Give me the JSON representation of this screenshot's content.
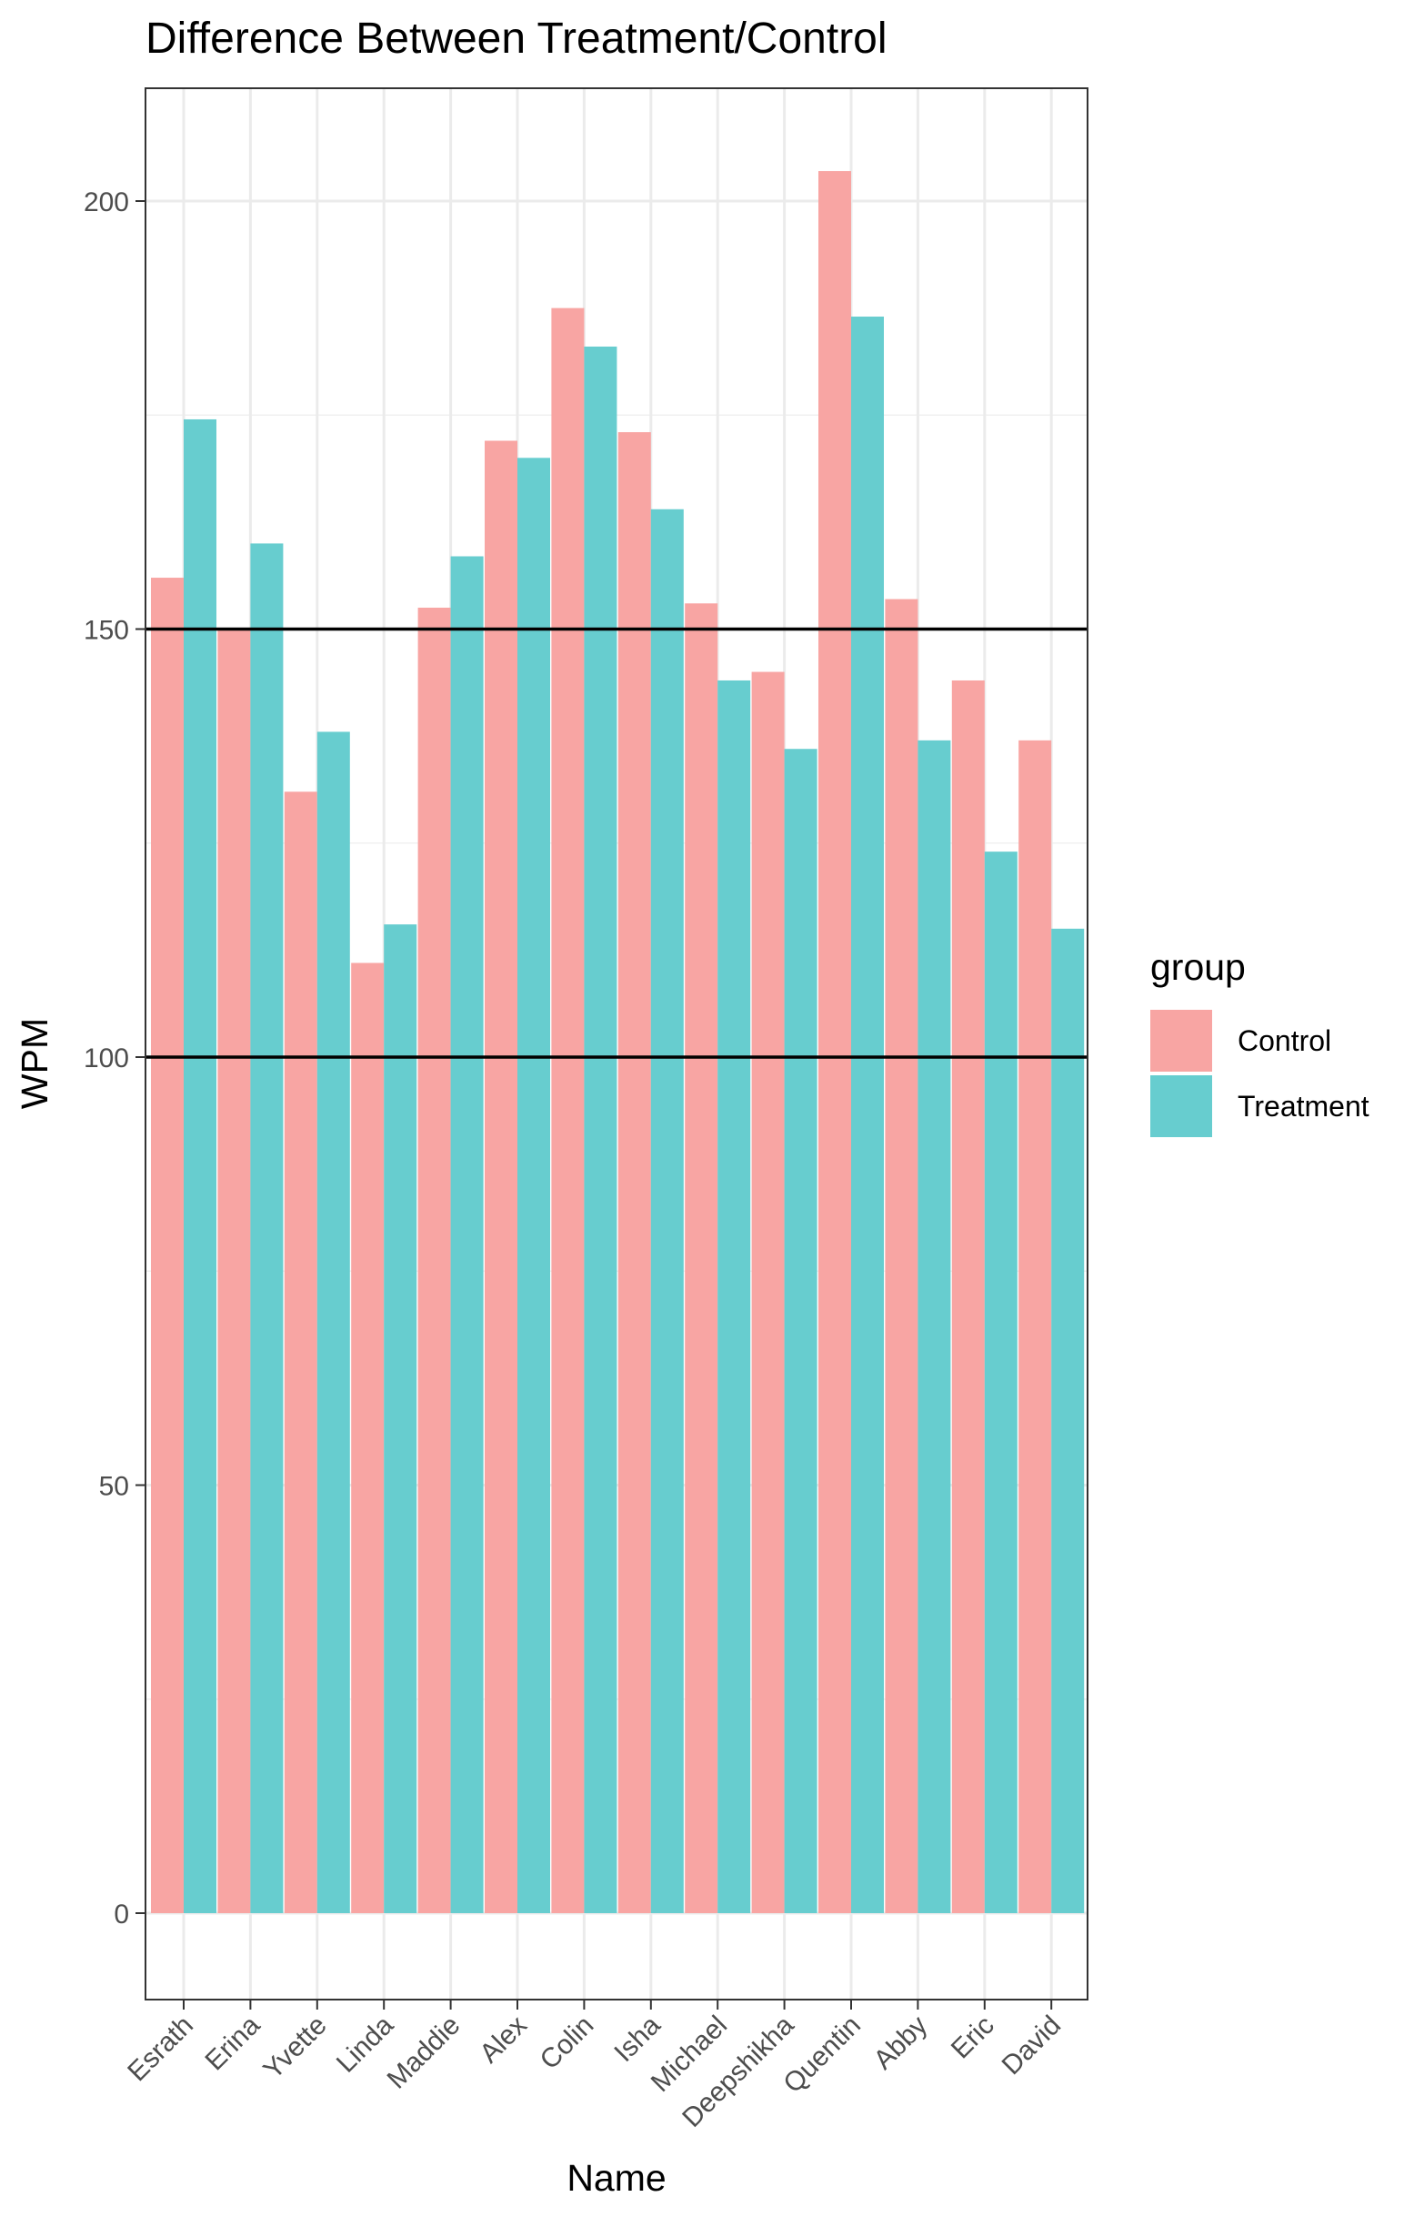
{
  "chart_data": {
    "type": "bar",
    "title": "Difference Between Treatment/Control",
    "xlabel": "Name",
    "ylabel": "WPM",
    "categories": [
      "Esrath",
      "Erina",
      "Yvette",
      "Linda",
      "Maddie",
      "Alex",
      "Colin",
      "Isha",
      "Michael",
      "Deepshikha",
      "Quentin",
      "Abby",
      "Eric",
      "David"
    ],
    "series": [
      {
        "name": "Control",
        "color": "#F8A5A3",
        "values": [
          156,
          150,
          131,
          111,
          152.5,
          172,
          187.5,
          173,
          153,
          145,
          203.5,
          153.5,
          144,
          137
        ]
      },
      {
        "name": "Treatment",
        "color": "#67CDCF",
        "values": [
          174.5,
          160,
          138,
          115.5,
          158.5,
          170,
          183,
          164,
          144,
          136,
          186.5,
          137,
          124,
          115
        ]
      }
    ],
    "yticks": [
      0,
      50,
      100,
      150,
      200
    ],
    "ylim": [
      -10,
      213.5
    ],
    "reference_lines": [
      100,
      150
    ],
    "legend": {
      "title": "group",
      "position": "right"
    },
    "grid": true,
    "theme": "bw"
  }
}
